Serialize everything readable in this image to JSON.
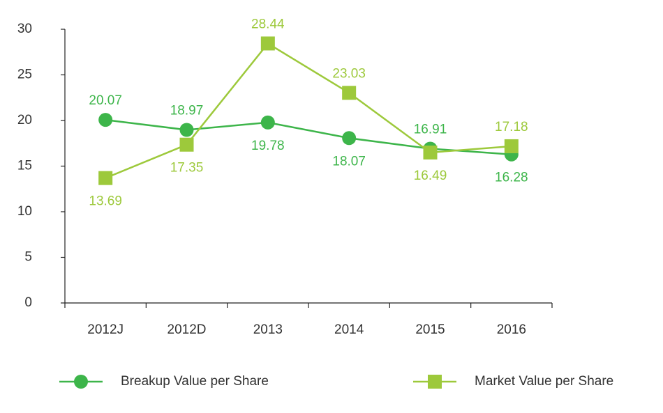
{
  "chart_data": {
    "type": "line",
    "categories": [
      "2012J",
      "2012D",
      "2013",
      "2014",
      "2015",
      "2016"
    ],
    "series": [
      {
        "name": "Breakup Value per Share",
        "color": "#3db54a",
        "marker": "circle",
        "values": [
          20.07,
          18.97,
          19.78,
          18.07,
          16.91,
          16.28
        ]
      },
      {
        "name": "Market Value per Share",
        "color": "#9dc93b",
        "marker": "square",
        "values": [
          13.69,
          17.35,
          28.44,
          23.03,
          16.49,
          17.18
        ]
      }
    ],
    "ylim": [
      0,
      30
    ],
    "yticks": [
      0,
      5,
      10,
      15,
      20,
      25,
      30
    ],
    "grid": false,
    "legend": "bottom"
  }
}
